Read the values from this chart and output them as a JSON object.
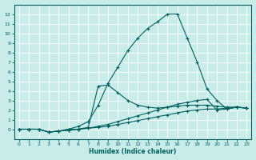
{
  "xlabel": "Humidex (Indice chaleur)",
  "background_color": "#c8ece8",
  "grid_color": "#b0d8d4",
  "line_color": "#006060",
  "xlim": [
    -0.5,
    23.5
  ],
  "ylim": [
    -1,
    13
  ],
  "xticks": [
    0,
    1,
    2,
    3,
    4,
    5,
    6,
    7,
    8,
    9,
    10,
    11,
    12,
    13,
    14,
    15,
    16,
    17,
    18,
    19,
    20,
    21,
    22,
    23
  ],
  "yticks": [
    0,
    1,
    2,
    3,
    4,
    5,
    6,
    7,
    8,
    9,
    10,
    11,
    12
  ],
  "series": [
    {
      "x": [
        0,
        1,
        2,
        3,
        4,
        5,
        6,
        7,
        8,
        9,
        10,
        11,
        12,
        13,
        14,
        15,
        16,
        17,
        18,
        19,
        20,
        21,
        22,
        23
      ],
      "y": [
        0,
        0,
        0,
        -0.3,
        -0.2,
        0,
        0.3,
        0.8,
        2.5,
        4.8,
        6.5,
        8.2,
        9.5,
        10.5,
        11.2,
        12.0,
        12.0,
        9.5,
        7.0,
        4.2,
        3.0,
        2.1,
        2.3,
        2.2
      ]
    },
    {
      "x": [
        0,
        1,
        2,
        3,
        4,
        5,
        6,
        7,
        8,
        9,
        10,
        11,
        12,
        13,
        14,
        15,
        16,
        17,
        18,
        19,
        20,
        21,
        22,
        23
      ],
      "y": [
        0,
        0,
        0,
        -0.3,
        -0.2,
        0.0,
        0.0,
        0.2,
        4.5,
        4.6,
        3.8,
        3.0,
        2.5,
        2.3,
        2.2,
        2.3,
        2.4,
        2.5,
        2.5,
        2.5,
        2.4,
        2.3,
        2.3,
        2.2
      ]
    },
    {
      "x": [
        0,
        1,
        2,
        3,
        4,
        5,
        6,
        7,
        8,
        9,
        10,
        11,
        12,
        13,
        14,
        15,
        16,
        17,
        18,
        19,
        20,
        21,
        22,
        23
      ],
      "y": [
        0,
        0,
        0,
        -0.3,
        -0.2,
        -0.1,
        0.0,
        0.1,
        0.3,
        0.5,
        0.8,
        1.1,
        1.4,
        1.7,
        2.0,
        2.3,
        2.6,
        2.8,
        3.0,
        3.1,
        2.0,
        2.1,
        2.3,
        2.2
      ]
    },
    {
      "x": [
        0,
        1,
        2,
        3,
        4,
        5,
        6,
        7,
        8,
        9,
        10,
        11,
        12,
        13,
        14,
        15,
        16,
        17,
        18,
        19,
        20,
        21,
        22,
        23
      ],
      "y": [
        0,
        0,
        0,
        -0.3,
        -0.2,
        -0.1,
        0.0,
        0.1,
        0.2,
        0.3,
        0.5,
        0.7,
        0.9,
        1.1,
        1.3,
        1.5,
        1.7,
        1.9,
        2.0,
        2.1,
        2.1,
        2.2,
        2.3,
        2.2
      ]
    }
  ]
}
